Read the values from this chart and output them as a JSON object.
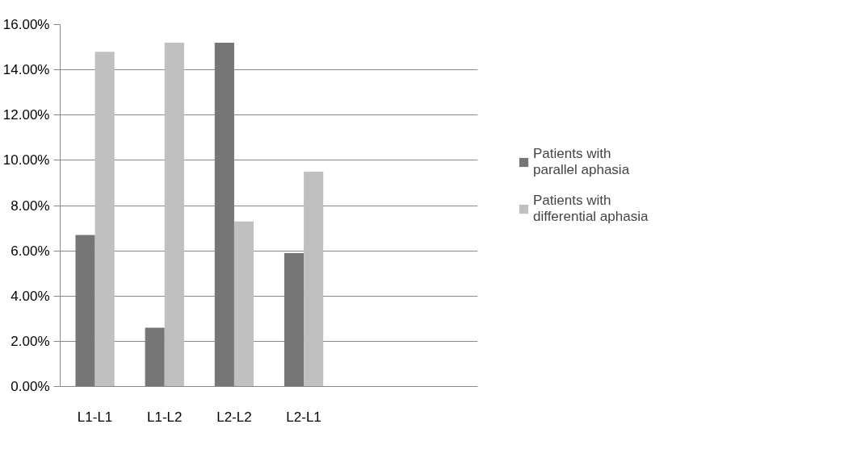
{
  "chart_data": {
    "type": "bar",
    "categories": [
      "L1-L1",
      "L1-L2",
      "L2-L2",
      "L2-L1",
      null,
      null
    ],
    "series": [
      {
        "name": "Patients with parallel aphasia",
        "color": "#767676",
        "values": [
          6.7,
          2.6,
          15.2,
          5.9,
          null,
          null
        ]
      },
      {
        "name": "Patients with differential aphasia",
        "color": "#c0c0c0",
        "values": [
          14.8,
          15.2,
          7.3,
          9.5,
          null,
          null
        ]
      }
    ],
    "ylim": [
      0,
      16
    ],
    "yticks": [
      {
        "value": 0,
        "label": "0.00%"
      },
      {
        "value": 2,
        "label": "2.00%"
      },
      {
        "value": 4,
        "label": "4.00%"
      },
      {
        "value": 6,
        "label": "6.00%"
      },
      {
        "value": 8,
        "label": "8.00%"
      },
      {
        "value": 10,
        "label": "10.00%"
      },
      {
        "value": 12,
        "label": "12.00%"
      },
      {
        "value": 14,
        "label": "14.00%"
      },
      {
        "value": 16,
        "label": "16.00%"
      }
    ],
    "grid": "y",
    "legend": "right"
  }
}
